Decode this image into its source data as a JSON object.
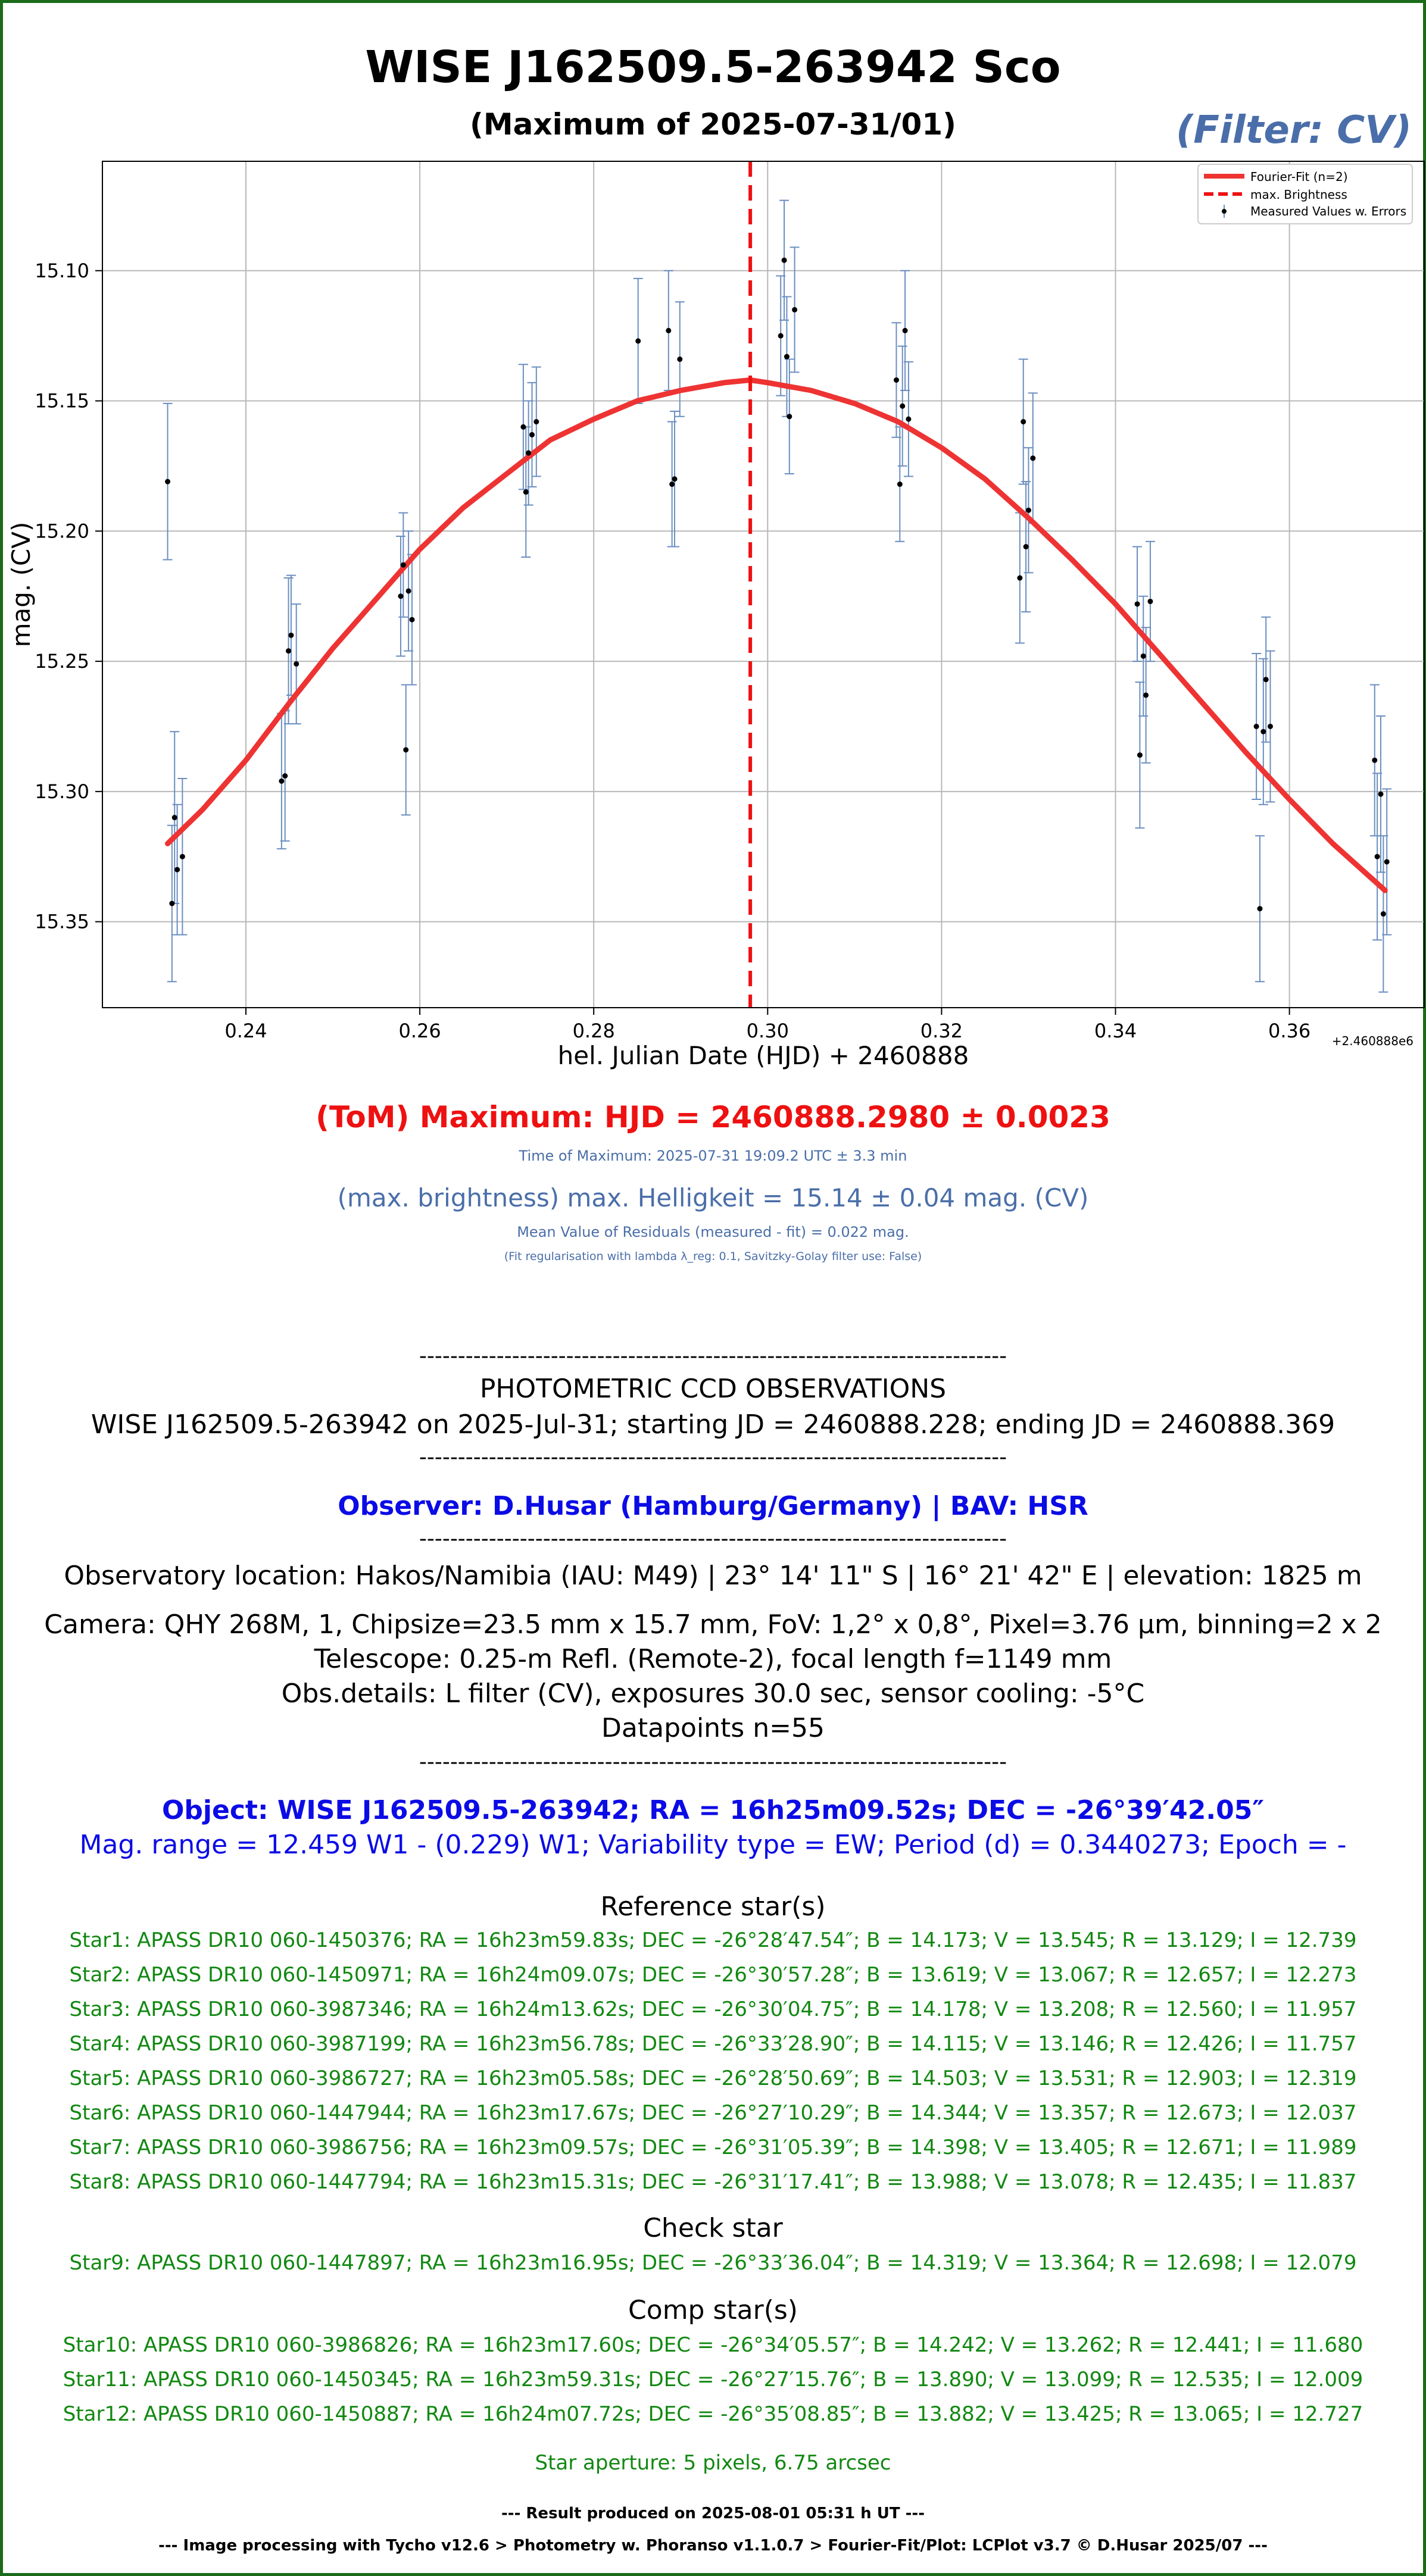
{
  "header": {
    "title": "WISE J162509.5-263942 Sco",
    "subtitle": "(Maximum of 2025-07-31/01)",
    "filter": "(Filter: CV)"
  },
  "chart_data": {
    "type": "scatter",
    "xlabel": "hel. Julian Date (HJD) + 2460888",
    "ylabel": "mag. (CV)",
    "offset_label": "+2.460888e6",
    "xlim": [
      0.2235,
      0.3755
    ],
    "ylim": [
      15.383,
      15.058
    ],
    "y_inverted": true,
    "grid": true,
    "legend_position": "top-right",
    "xticks": [
      0.24,
      0.26,
      0.28,
      0.3,
      0.32,
      0.34,
      0.36
    ],
    "xtick_labels": [
      "0.24",
      "0.26",
      "0.28",
      "0.30",
      "0.32",
      "0.34",
      "0.36"
    ],
    "yticks": [
      15.1,
      15.15,
      15.2,
      15.25,
      15.3,
      15.35
    ],
    "ytick_labels": [
      "15.10",
      "15.15",
      "15.20",
      "15.25",
      "15.30",
      "15.35"
    ],
    "legend": [
      "Fourier-Fit (n=2)",
      "max. Brightness",
      "Measured Values w. Errors"
    ],
    "colors": {
      "fit": "#ee3333",
      "max_line": "#ee1111",
      "errorbar": "#6a8ec0",
      "point": "#000000"
    },
    "max_hjd": 0.298,
    "fit": {
      "x": [
        0.231,
        0.235,
        0.24,
        0.245,
        0.25,
        0.255,
        0.26,
        0.265,
        0.27,
        0.275,
        0.28,
        0.285,
        0.29,
        0.295,
        0.298,
        0.3,
        0.305,
        0.31,
        0.315,
        0.32,
        0.325,
        0.33,
        0.335,
        0.34,
        0.345,
        0.35,
        0.355,
        0.36,
        0.365,
        0.371
      ],
      "y": [
        15.32,
        15.307,
        15.288,
        15.266,
        15.245,
        15.226,
        15.207,
        15.191,
        15.178,
        15.165,
        15.157,
        15.15,
        15.146,
        15.143,
        15.142,
        15.143,
        15.146,
        15.151,
        15.158,
        15.168,
        15.18,
        15.195,
        15.211,
        15.228,
        15.247,
        15.266,
        15.285,
        15.303,
        15.32,
        15.338
      ]
    },
    "points": [
      {
        "x": 0.231,
        "y": 15.181,
        "err": 0.03
      },
      {
        "x": 0.2315,
        "y": 15.343,
        "err": 0.03
      },
      {
        "x": 0.2318,
        "y": 15.31,
        "err": 0.033
      },
      {
        "x": 0.2321,
        "y": 15.33,
        "err": 0.025
      },
      {
        "x": 0.2327,
        "y": 15.325,
        "err": 0.03
      },
      {
        "x": 0.2441,
        "y": 15.296,
        "err": 0.026
      },
      {
        "x": 0.2445,
        "y": 15.294,
        "err": 0.025
      },
      {
        "x": 0.2449,
        "y": 15.246,
        "err": 0.028
      },
      {
        "x": 0.2452,
        "y": 15.24,
        "err": 0.023
      },
      {
        "x": 0.2458,
        "y": 15.251,
        "err": 0.023
      },
      {
        "x": 0.2578,
        "y": 15.225,
        "err": 0.023
      },
      {
        "x": 0.2581,
        "y": 15.213,
        "err": 0.02
      },
      {
        "x": 0.2584,
        "y": 15.284,
        "err": 0.025
      },
      {
        "x": 0.2587,
        "y": 15.223,
        "err": 0.023
      },
      {
        "x": 0.2591,
        "y": 15.234,
        "err": 0.025
      },
      {
        "x": 0.2719,
        "y": 15.16,
        "err": 0.024
      },
      {
        "x": 0.2722,
        "y": 15.185,
        "err": 0.025
      },
      {
        "x": 0.2725,
        "y": 15.17,
        "err": 0.02
      },
      {
        "x": 0.2729,
        "y": 15.163,
        "err": 0.02
      },
      {
        "x": 0.2734,
        "y": 15.158,
        "err": 0.021
      },
      {
        "x": 0.2851,
        "y": 15.127,
        "err": 0.024
      },
      {
        "x": 0.2886,
        "y": 15.123,
        "err": 0.023
      },
      {
        "x": 0.289,
        "y": 15.182,
        "err": 0.024
      },
      {
        "x": 0.2893,
        "y": 15.18,
        "err": 0.026
      },
      {
        "x": 0.2899,
        "y": 15.134,
        "err": 0.022
      },
      {
        "x": 0.3015,
        "y": 15.125,
        "err": 0.023
      },
      {
        "x": 0.3019,
        "y": 15.096,
        "err": 0.023
      },
      {
        "x": 0.3022,
        "y": 15.133,
        "err": 0.023
      },
      {
        "x": 0.3025,
        "y": 15.156,
        "err": 0.022
      },
      {
        "x": 0.3031,
        "y": 15.115,
        "err": 0.024
      },
      {
        "x": 0.3148,
        "y": 15.142,
        "err": 0.022
      },
      {
        "x": 0.3152,
        "y": 15.182,
        "err": 0.022
      },
      {
        "x": 0.3155,
        "y": 15.152,
        "err": 0.023
      },
      {
        "x": 0.3158,
        "y": 15.123,
        "err": 0.023
      },
      {
        "x": 0.3162,
        "y": 15.157,
        "err": 0.022
      },
      {
        "x": 0.329,
        "y": 15.218,
        "err": 0.025
      },
      {
        "x": 0.3294,
        "y": 15.158,
        "err": 0.024
      },
      {
        "x": 0.3297,
        "y": 15.206,
        "err": 0.025
      },
      {
        "x": 0.33,
        "y": 15.192,
        "err": 0.024
      },
      {
        "x": 0.3305,
        "y": 15.172,
        "err": 0.025
      },
      {
        "x": 0.3425,
        "y": 15.228,
        "err": 0.022
      },
      {
        "x": 0.3428,
        "y": 15.286,
        "err": 0.028
      },
      {
        "x": 0.3432,
        "y": 15.248,
        "err": 0.023
      },
      {
        "x": 0.3435,
        "y": 15.263,
        "err": 0.026
      },
      {
        "x": 0.344,
        "y": 15.227,
        "err": 0.023
      },
      {
        "x": 0.3562,
        "y": 15.275,
        "err": 0.028
      },
      {
        "x": 0.3566,
        "y": 15.345,
        "err": 0.028
      },
      {
        "x": 0.357,
        "y": 15.277,
        "err": 0.028
      },
      {
        "x": 0.3573,
        "y": 15.257,
        "err": 0.024
      },
      {
        "x": 0.3578,
        "y": 15.275,
        "err": 0.029
      },
      {
        "x": 0.3698,
        "y": 15.288,
        "err": 0.029
      },
      {
        "x": 0.3701,
        "y": 15.325,
        "err": 0.032
      },
      {
        "x": 0.3705,
        "y": 15.301,
        "err": 0.03
      },
      {
        "x": 0.3708,
        "y": 15.347,
        "err": 0.03
      },
      {
        "x": 0.3712,
        "y": 15.327,
        "err": 0.028
      }
    ]
  },
  "results": {
    "tom": "(ToM) Maximum: HJD = 2460888.2980 ± 0.0023",
    "time_of_max": "Time of Maximum:   2025-07-31   19:09.2 UTC ± 3.3 min",
    "max_brightness": "(max. brightness) max. Helligkeit = 15.14 ± 0.04 mag. (CV)",
    "residuals": "Mean Value of Residuals (measured - fit) = 0.022 mag.",
    "regularisation": "(Fit regularisation with lambda λ_reg: 0.1, Savitzky-Golay filter use: False)"
  },
  "observations": {
    "separator": "----------------------------------------------------------------------------",
    "heading": "PHOTOMETRIC CCD OBSERVATIONS",
    "summary": "WISE J162509.5-263942 on 2025-Jul-31; starting JD = 2460888.228; ending JD = 2460888.369",
    "observer": "Observer: D.Husar (Hamburg/Germany) | BAV: HSR",
    "location": "Observatory location: Hakos/Namibia (IAU: M49) | 23° 14' 11\" S | 16° 21' 42\" E | elevation: 1825 m",
    "camera": "Camera: QHY 268M, 1, Chipsize=23.5 mm x 15.7 mm, FoV: 1,2° x 0,8°, Pixel=3.76 µm, binning=2 x 2",
    "telescope": "Telescope: 0.25-m Refl. (Remote-2), focal length f=1149 mm",
    "details": "Obs.details: L filter (CV), exposures 30.0 sec, sensor cooling: -5°C",
    "datapoints": "Datapoints n=55",
    "object": "Object: WISE J162509.5-263942; RA = 16h25m09.52s; DEC = -26°39′42.05″",
    "magrange": "Mag. range = 12.459 W1 - (0.229) W1; Variability type = EW; Period (d) = 0.3440273; Epoch = -"
  },
  "stars": {
    "reference_title": "Reference star(s)",
    "reference": [
      "Star1: APASS DR10 060-1450376; RA = 16h23m59.83s; DEC = -26°28′47.54″; B = 14.173; V = 13.545; R = 13.129; I = 12.739",
      "Star2: APASS DR10 060-1450971; RA = 16h24m09.07s; DEC = -26°30′57.28″; B = 13.619; V = 13.067; R = 12.657; I = 12.273",
      "Star3: APASS DR10 060-3987346; RA = 16h24m13.62s; DEC = -26°30′04.75″; B = 14.178; V = 13.208; R = 12.560; I = 11.957",
      "Star4: APASS DR10 060-3987199; RA = 16h23m56.78s; DEC = -26°33′28.90″; B = 14.115; V = 13.146; R = 12.426; I = 11.757",
      "Star5: APASS DR10 060-3986727; RA = 16h23m05.58s; DEC = -26°28′50.69″; B = 14.503; V = 13.531; R = 12.903; I = 12.319",
      "Star6: APASS DR10 060-1447944; RA = 16h23m17.67s; DEC = -26°27′10.29″; B = 14.344; V = 13.357; R = 12.673; I = 12.037",
      "Star7: APASS DR10 060-3986756; RA = 16h23m09.57s; DEC = -26°31′05.39″; B = 14.398; V = 13.405; R = 12.671; I = 11.989",
      "Star8: APASS DR10 060-1447794; RA = 16h23m15.31s; DEC = -26°31′17.41″; B = 13.988; V = 13.078; R = 12.435; I = 11.837"
    ],
    "check_title": "Check star",
    "check": "Star9: APASS DR10 060-1447897; RA = 16h23m16.95s; DEC = -26°33′36.04″; B = 14.319; V = 13.364; R = 12.698; I = 12.079",
    "comp_title": "Comp star(s)",
    "comp": [
      "Star10: APASS DR10 060-3986826; RA = 16h23m17.60s; DEC = -26°34′05.57″; B = 14.242; V = 13.262; R = 12.441; I = 11.680",
      "Star11: APASS DR10 060-1450345; RA = 16h23m59.31s; DEC = -26°27′15.76″; B = 13.890; V = 13.099; R = 12.535; I = 12.009",
      "Star12: APASS DR10 060-1450887; RA = 16h24m07.72s; DEC = -26°35′08.85″; B = 13.882; V = 13.425; R = 13.065; I = 12.727"
    ],
    "aperture": "Star aperture: 5 pixels, 6.75 arcsec"
  },
  "footer": {
    "result": "--- Result produced on 2025-08-01 05:31 h UT ---",
    "credits": "--- Image processing with Tycho v12.6 > Photometry w. Phoranso v1.1.0.7 > Fourier-Fit/Plot: LCPlot v3.7 © D.Husar 2025/07 ---"
  }
}
